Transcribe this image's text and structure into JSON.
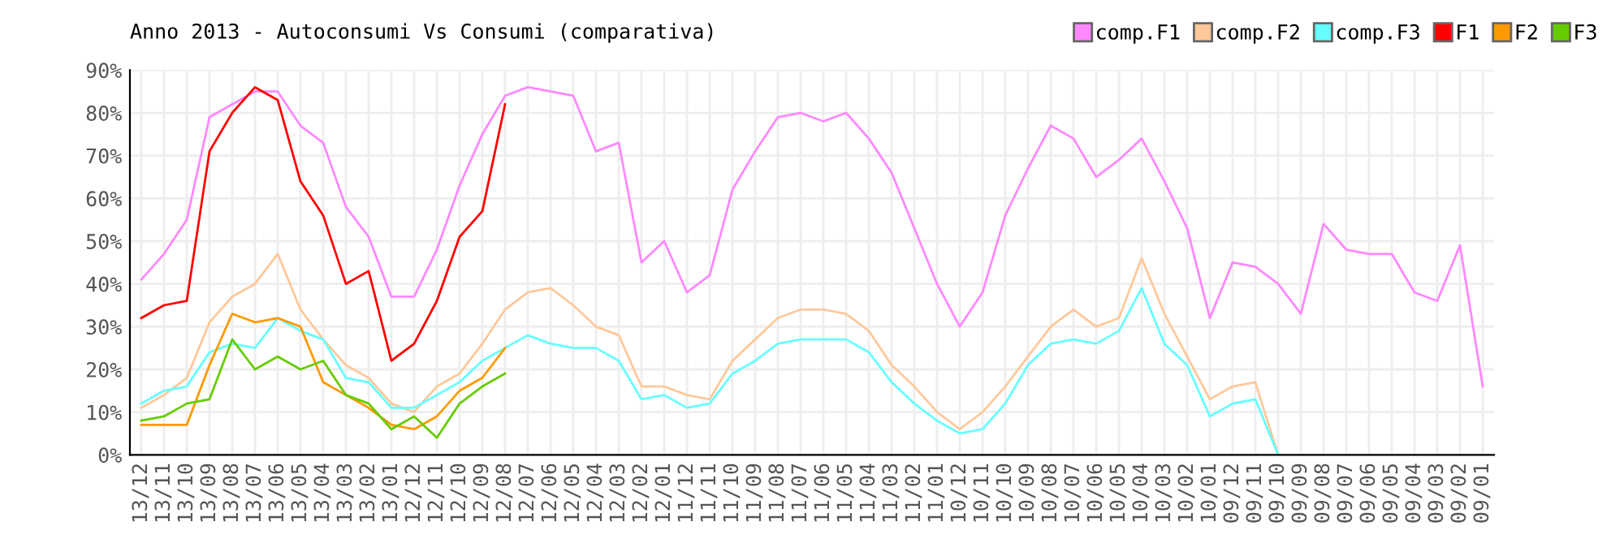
{
  "chart_data": {
    "type": "line",
    "title": "Anno 2013 - Autoconsumi Vs Consumi (comparativa)",
    "categories": [
      "13/12",
      "13/11",
      "13/10",
      "13/09",
      "13/08",
      "13/07",
      "13/06",
      "13/05",
      "13/04",
      "13/03",
      "13/02",
      "13/01",
      "12/12",
      "12/11",
      "12/10",
      "12/09",
      "12/08",
      "12/07",
      "12/06",
      "12/05",
      "12/04",
      "12/03",
      "12/02",
      "12/01",
      "11/12",
      "11/11",
      "11/10",
      "11/09",
      "11/08",
      "11/07",
      "11/06",
      "11/05",
      "11/04",
      "11/03",
      "11/02",
      "11/01",
      "10/12",
      "10/11",
      "10/10",
      "10/09",
      "10/08",
      "10/07",
      "10/06",
      "10/05",
      "10/04",
      "10/03",
      "10/02",
      "10/01",
      "09/12",
      "09/11",
      "09/10",
      "09/09",
      "09/08",
      "09/07",
      "09/06",
      "09/05",
      "09/04",
      "09/03",
      "09/02",
      "09/01"
    ],
    "series": [
      {
        "name": "comp.F1",
        "color": "#ff88ff",
        "values": [
          41,
          47,
          55,
          79,
          82,
          85,
          85,
          77,
          73,
          58,
          51,
          37,
          37,
          48,
          63,
          75,
          84,
          86,
          85,
          84,
          71,
          73,
          45,
          50,
          38,
          42,
          62,
          71,
          79,
          80,
          78,
          80,
          74,
          66,
          53,
          40,
          30,
          38,
          56,
          67,
          77,
          74,
          65,
          69,
          74,
          64,
          53,
          32,
          45,
          44,
          40,
          33,
          54,
          48,
          47,
          47,
          38,
          36,
          49,
          16
        ]
      },
      {
        "name": "comp.F2",
        "color": "#ffc89a",
        "values": [
          11,
          14,
          18,
          31,
          37,
          40,
          47,
          34,
          27,
          21,
          18,
          12,
          10,
          16,
          19,
          26,
          34,
          38,
          39,
          35,
          30,
          28,
          16,
          16,
          14,
          13,
          22,
          27,
          32,
          34,
          34,
          33,
          29,
          21,
          16,
          10,
          6,
          10,
          16,
          23,
          30,
          34,
          30,
          32,
          46,
          33,
          23,
          13,
          16,
          17,
          0,
          null,
          null,
          null,
          null,
          null,
          null,
          null,
          null,
          null
        ]
      },
      {
        "name": "comp.F3",
        "color": "#66ffff",
        "values": [
          12,
          15,
          16,
          24,
          26,
          25,
          32,
          29,
          27,
          18,
          17,
          11,
          11,
          14,
          17,
          22,
          25,
          28,
          26,
          25,
          25,
          22,
          13,
          14,
          11,
          12,
          19,
          22,
          26,
          27,
          27,
          27,
          24,
          17,
          12,
          8,
          5,
          6,
          12,
          21,
          26,
          27,
          26,
          29,
          39,
          26,
          21,
          9,
          12,
          13,
          0,
          null,
          null,
          null,
          null,
          null,
          null,
          null,
          null,
          null
        ]
      },
      {
        "name": "F1",
        "color": "#ff0000",
        "values": [
          32,
          35,
          36,
          71,
          80,
          86,
          83,
          64,
          56,
          40,
          43,
          22,
          26,
          36,
          51,
          57,
          82,
          null,
          null,
          null,
          null,
          null,
          null,
          null,
          null,
          null,
          null,
          null,
          null,
          null,
          null,
          null,
          null,
          null,
          null,
          null,
          null,
          null,
          null,
          null,
          null,
          null,
          null,
          null,
          null,
          null,
          null,
          null,
          null,
          null,
          null,
          null,
          null,
          null,
          null,
          null,
          null,
          null,
          null,
          null
        ]
      },
      {
        "name": "F2",
        "color": "#ff9900",
        "values": [
          7,
          7,
          7,
          21,
          33,
          31,
          32,
          30,
          17,
          14,
          11,
          7,
          6,
          9,
          15,
          18,
          25,
          null,
          null,
          null,
          null,
          null,
          null,
          null,
          null,
          null,
          null,
          null,
          null,
          null,
          null,
          null,
          null,
          null,
          null,
          null,
          null,
          null,
          null,
          null,
          null,
          null,
          null,
          null,
          null,
          null,
          null,
          null,
          null,
          null,
          null,
          null,
          null,
          null,
          null,
          null,
          null,
          null,
          null,
          null
        ]
      },
      {
        "name": "F3",
        "color": "#66cc00",
        "values": [
          8,
          9,
          12,
          13,
          27,
          20,
          23,
          20,
          22,
          14,
          12,
          6,
          9,
          4,
          12,
          16,
          19,
          null,
          null,
          null,
          null,
          null,
          null,
          null,
          null,
          null,
          null,
          null,
          null,
          null,
          null,
          null,
          null,
          null,
          null,
          null,
          null,
          null,
          null,
          null,
          null,
          null,
          null,
          null,
          null,
          null,
          null,
          null,
          null,
          null,
          null,
          null,
          null,
          null,
          null,
          null,
          null,
          null,
          null,
          null
        ]
      }
    ],
    "ylim": [
      0,
      90
    ],
    "yticks": [
      {
        "value": 0,
        "label": "0%"
      },
      {
        "value": 10,
        "label": "10%"
      },
      {
        "value": 20,
        "label": "20%"
      },
      {
        "value": 30,
        "label": "30%"
      },
      {
        "value": 40,
        "label": "40%"
      },
      {
        "value": 50,
        "label": "50%"
      },
      {
        "value": 60,
        "label": "60%"
      },
      {
        "value": 70,
        "label": "70%"
      },
      {
        "value": 80,
        "label": "80%"
      },
      {
        "value": 90,
        "label": "90%"
      }
    ],
    "grid": true,
    "legend": "top right",
    "marker": "none",
    "line_style": "solid"
  }
}
